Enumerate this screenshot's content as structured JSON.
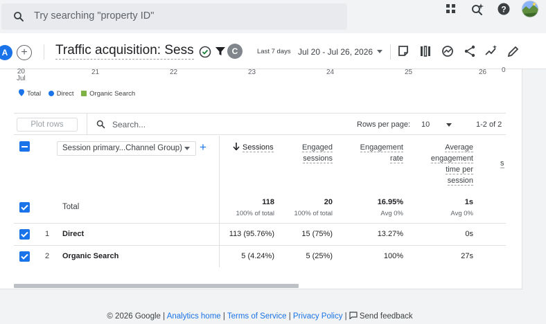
{
  "search": {
    "placeholder": "Try searching \"property ID\""
  },
  "header": {
    "comparison_a": "A",
    "comparison_c": "C",
    "title": "Traffic acquisition: Sessi...",
    "date_small": "Last 7 days",
    "date_range": "Jul 20 - Jul 26, 2026"
  },
  "chart": {
    "x_labels": [
      "20\nJul",
      "21",
      "22",
      "23",
      "24",
      "25",
      "26"
    ],
    "legend": [
      "Total",
      "Direct",
      "Organic Search"
    ]
  },
  "colors": {
    "total": "#1a73e8",
    "direct": "#1a73e8",
    "organic": "#7cb342",
    "accent": "#1a73e8"
  },
  "table": {
    "plot_rows": "Plot rows",
    "search_placeholder": "Search...",
    "rows_per_page_label": "Rows per page:",
    "rows_per_page_value": "10",
    "pagination": "1-2 of 2",
    "dimension": "Session primary...Channel Group)",
    "columns": {
      "sessions": "Sessions",
      "engaged_sessions_1": "Engaged",
      "engaged_sessions_2": "sessions",
      "engagement_rate_1": "Engagement",
      "engagement_rate_2": "rate",
      "avg_time_1": "Average",
      "avg_time_2": "engagement",
      "avg_time_3": "time per",
      "avg_time_4": "session",
      "partial": "s"
    },
    "total": {
      "label": "Total",
      "sessions": "118",
      "sessions_sub": "100% of total",
      "engaged": "20",
      "engaged_sub": "100% of total",
      "rate": "16.95%",
      "rate_sub": "Avg 0%",
      "avg_time": "1s",
      "avg_time_sub": "Avg 0%"
    },
    "rows": [
      {
        "index": "1",
        "name": "Direct",
        "sessions": "113 (95.76%)",
        "engaged": "15 (75%)",
        "rate": "13.27%",
        "avg_time": "0s"
      },
      {
        "index": "2",
        "name": "Organic Search",
        "sessions": "5 (4.24%)",
        "engaged": "5 (25%)",
        "rate": "100%",
        "avg_time": "27s"
      }
    ]
  },
  "footer": {
    "copyright": "© 2026 Google",
    "analytics_home": "Analytics home",
    "terms": "Terms of Service",
    "privacy": "Privacy Policy",
    "feedback": "Send feedback"
  }
}
